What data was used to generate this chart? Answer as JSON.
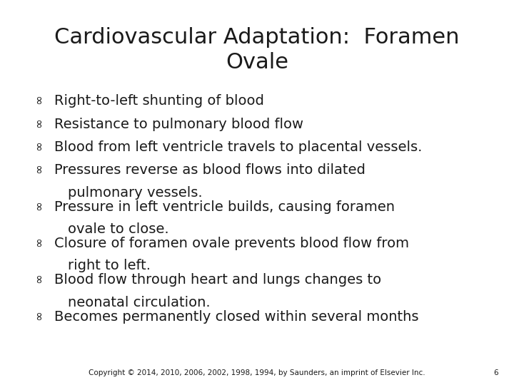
{
  "title_line1": "Cardiovascular Adaptation:  Foramen",
  "title_line2": "Ovale",
  "title_fontsize": 22,
  "bullet_fontsize": 14,
  "background_color": "#ffffff",
  "text_color": "#1a1a1a",
  "bullet_items": [
    [
      "Right-to-left shunting of blood",
      ""
    ],
    [
      "Resistance to pulmonary blood flow",
      ""
    ],
    [
      "Blood from left ventricle travels to placental vessels.",
      ""
    ],
    [
      "Pressures reverse as blood flows into dilated",
      "pulmonary vessels."
    ],
    [
      "Pressure in left ventricle builds, causing foramen",
      "ovale to close."
    ],
    [
      "Closure of foramen ovale prevents blood flow from",
      "right to left."
    ],
    [
      "Blood flow through heart and lungs changes to",
      "neonatal circulation."
    ],
    [
      "Becomes permanently closed within several months",
      ""
    ]
  ],
  "footer": "Copyright © 2014, 2010, 2006, 2002, 1998, 1994, by Saunders, an imprint of Elsevier Inc.",
  "page_number": "6",
  "footer_fontsize": 7.5
}
